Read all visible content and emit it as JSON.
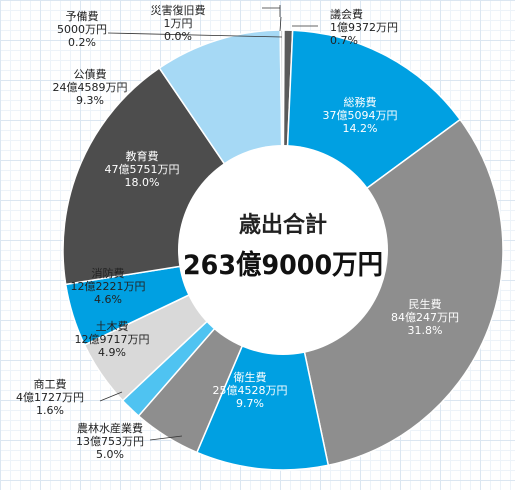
{
  "chart_data": {
    "type": "pie",
    "variant": "donut",
    "center_title": "歳出合計",
    "center_total": "263億9000万円",
    "grid": true,
    "slices": [
      {
        "name": "議会費",
        "amount": "1億9372万円",
        "pct_label": "0.7%",
        "value": 0.7,
        "color": "#5a5a5a",
        "text_color": "#222222"
      },
      {
        "name": "総務費",
        "amount": "37億5094万円",
        "pct_label": "14.2%",
        "value": 14.2,
        "color": "#00a0e2",
        "text_color": "#ffffff"
      },
      {
        "name": "民生費",
        "amount": "84億247万円",
        "pct_label": "31.8%",
        "value": 31.8,
        "color": "#8e8e8e",
        "text_color": "#ffffff"
      },
      {
        "name": "衛生費",
        "amount": "25億4528万円",
        "pct_label": "9.7%",
        "value": 9.7,
        "color": "#00a0e2",
        "text_color": "#ffffff"
      },
      {
        "name": "農林水産業費",
        "amount": "13億753万円",
        "pct_label": "5.0%",
        "value": 5.0,
        "color": "#8e8e8e",
        "text_color": "#222222"
      },
      {
        "name": "商工費",
        "amount": "4億1727万円",
        "pct_label": "1.6%",
        "value": 1.6,
        "color": "#4fc3f1",
        "text_color": "#222222"
      },
      {
        "name": "土木費",
        "amount": "12億9717万円",
        "pct_label": "4.9%",
        "value": 4.9,
        "color": "#d9d9d9",
        "text_color": "#222222"
      },
      {
        "name": "消防費",
        "amount": "12億2221万円",
        "pct_label": "4.6%",
        "value": 4.6,
        "color": "#00a0e2",
        "text_color": "#222222"
      },
      {
        "name": "教育費",
        "amount": "47億5751万円",
        "pct_label": "18.0%",
        "value": 18.0,
        "color": "#4d4d4d",
        "text_color": "#ffffff"
      },
      {
        "name": "公債費",
        "amount": "24億4589万円",
        "pct_label": "9.3%",
        "value": 9.3,
        "color": "#a6d9f5",
        "text_color": "#222222"
      },
      {
        "name": "予備費",
        "amount": "5000万円",
        "pct_label": "0.2%",
        "value": 0.2,
        "color": "#cfcfcf",
        "text_color": "#222222"
      },
      {
        "name": "災害復旧費",
        "amount": "1万円",
        "pct_label": "0.0%",
        "value": 0.0,
        "color": "#bfbfbf",
        "text_color": "#222222"
      }
    ]
  }
}
